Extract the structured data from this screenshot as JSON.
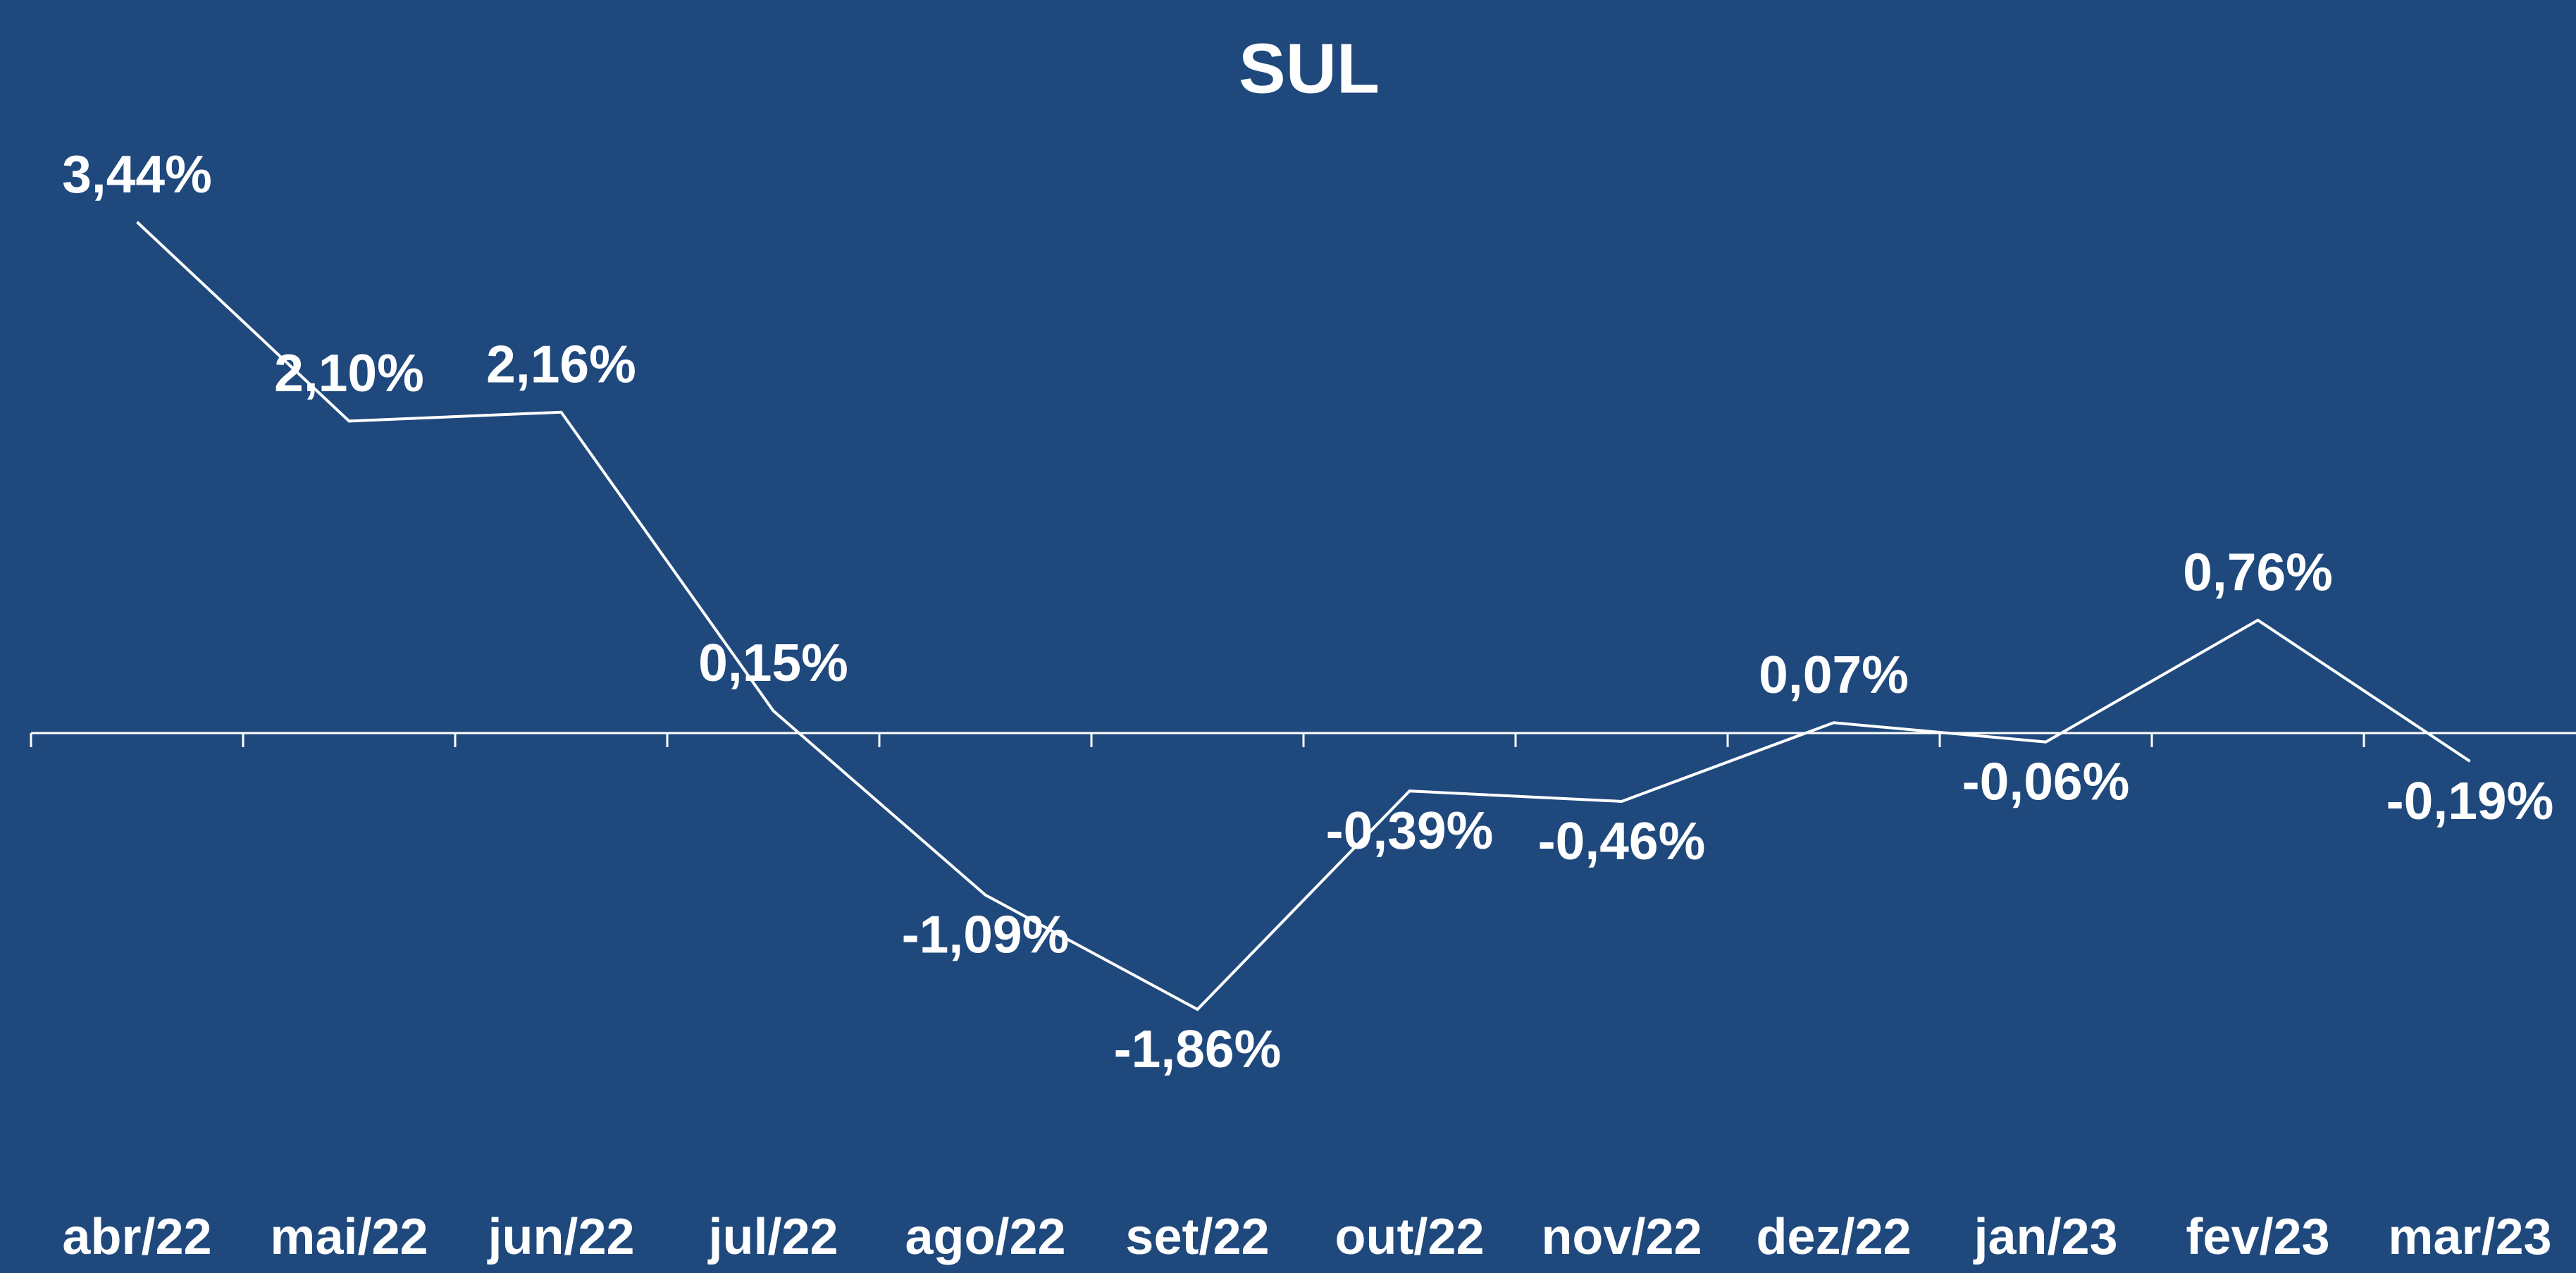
{
  "chart_data": {
    "type": "line",
    "title": "SUL",
    "categories": [
      "abr/22",
      "mai/22",
      "jun/22",
      "jul/22",
      "ago/22",
      "set/22",
      "out/22",
      "nov/22",
      "dez/22",
      "jan/23",
      "fev/23",
      "mar/23"
    ],
    "values": [
      3.44,
      2.1,
      2.16,
      0.15,
      -1.09,
      -1.86,
      -0.39,
      -0.46,
      0.07,
      -0.06,
      0.76,
      -0.19
    ],
    "value_labels": [
      "3,44%",
      "2,10%",
      "2,16%",
      "0,15%",
      "-1,09%",
      "-1,86%",
      "-0,39%",
      "-0,46%",
      "0,07%",
      "-0,06%",
      "0,76%",
      "-0,19%"
    ],
    "color": "#ffffff",
    "background": "#1f497d"
  }
}
